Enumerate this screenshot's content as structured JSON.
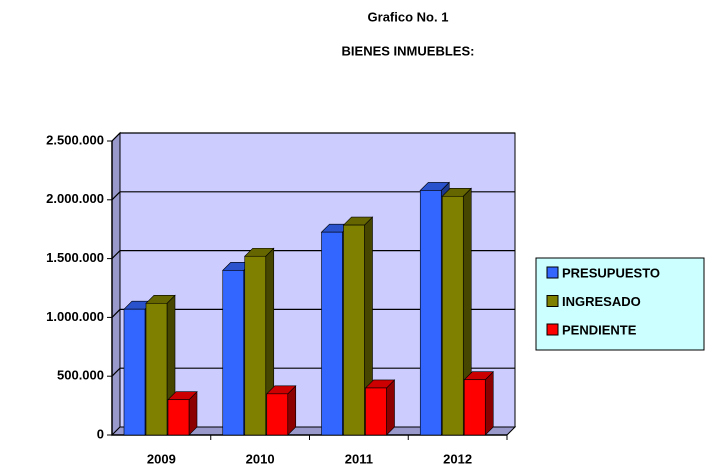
{
  "chart_data": {
    "type": "bar3d",
    "title": "Grafico No. 1",
    "subtitle": "BIENES INMUEBLES:",
    "categories": [
      "2009",
      "2010",
      "2011",
      "2012"
    ],
    "series": [
      {
        "name": "PRESUPUESTO",
        "color": "#3366ff",
        "values": [
          1070000,
          1400000,
          1725000,
          2080000
        ]
      },
      {
        "name": "INGRESADO",
        "color": "#808000",
        "values": [
          1120000,
          1520000,
          1785000,
          2030000
        ]
      },
      {
        "name": "PENDIENTE",
        "color": "#ff0000",
        "values": [
          300000,
          350000,
          400000,
          470000
        ]
      }
    ],
    "ylim": [
      0,
      2500000
    ],
    "yticks": [
      0,
      {
        "value": 500000,
        "label": "500.000"
      },
      {
        "value": 1000000,
        "label": "1.000.000"
      },
      {
        "value": 1500000,
        "label": "1.500.000"
      },
      {
        "value": 2000000,
        "label": "2.000.000"
      },
      {
        "value": 2500000,
        "label": "2.500.000"
      }
    ],
    "grid": true,
    "legend": "right"
  }
}
